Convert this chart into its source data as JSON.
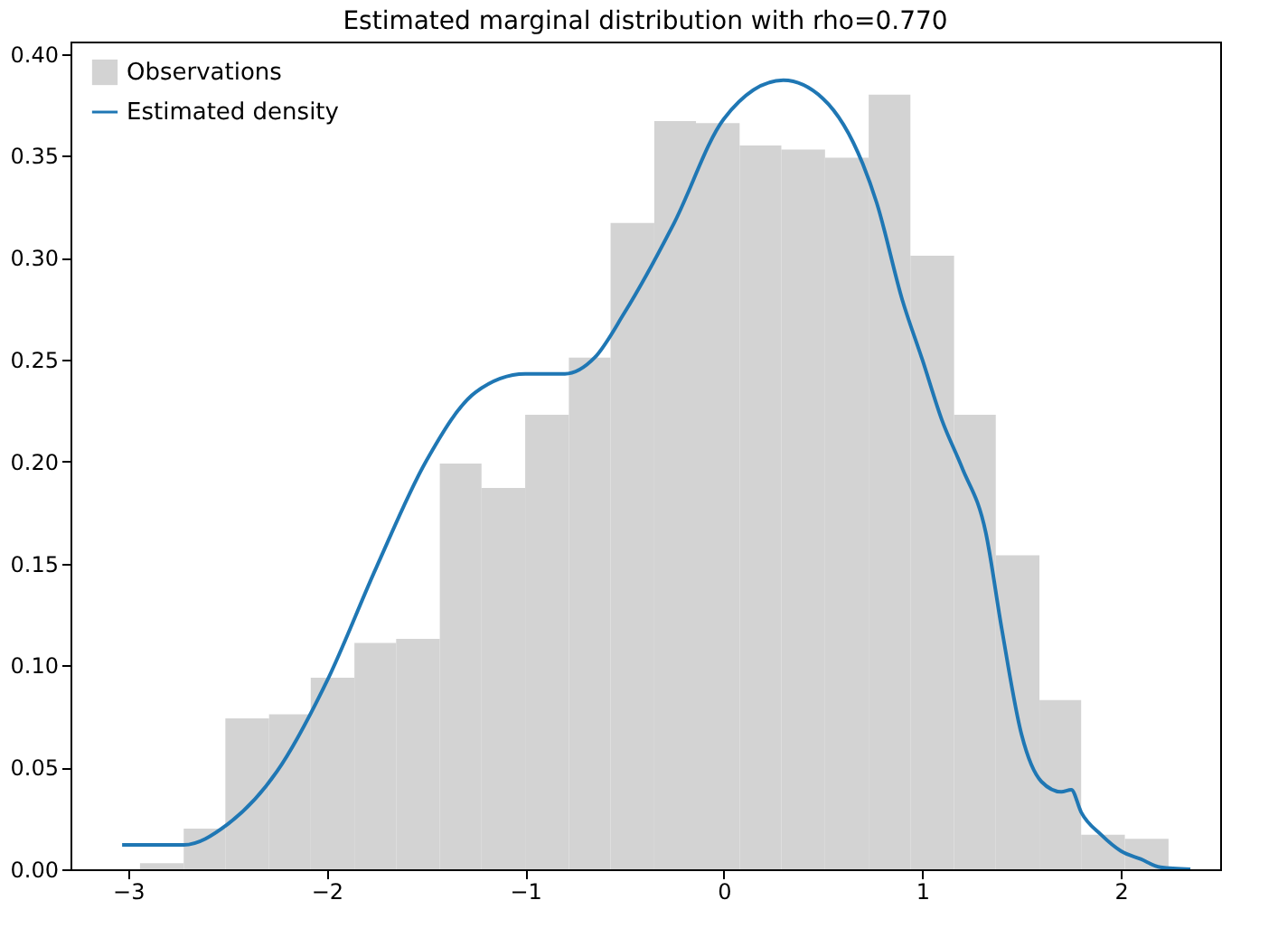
{
  "chart_data": {
    "type": "histogram",
    "title": "Estimated marginal distribution with rho=0.770",
    "bins": [
      -2.94,
      -2.72,
      -2.51,
      -2.29,
      -2.08,
      -1.86,
      -1.65,
      -1.43,
      -1.22,
      -1.0,
      -0.78,
      -0.57,
      -0.35,
      -0.14,
      0.08,
      0.29,
      0.51,
      0.73,
      0.94,
      1.16,
      1.37,
      1.59,
      1.8,
      2.02,
      2.24
    ],
    "series": [
      {
        "name": "Observations",
        "type": "histogram",
        "color": "#d3d3d3",
        "values": [
          0.003,
          0.02,
          0.074,
          0.076,
          0.094,
          0.111,
          0.113,
          0.199,
          0.187,
          0.223,
          0.251,
          0.317,
          0.367,
          0.366,
          0.355,
          0.353,
          0.349,
          0.38,
          0.301,
          0.223,
          0.154,
          0.083,
          0.017,
          0.015
        ]
      },
      {
        "name": "Estimated density",
        "type": "line",
        "color": "#1f77b4",
        "x": [
          -3.03,
          -2.72,
          -2.5,
          -2.25,
          -2.0,
          -1.75,
          -1.5,
          -1.25,
          -1.0,
          -0.8,
          -0.65,
          -0.5,
          -0.25,
          0.0,
          0.3,
          0.5,
          0.7,
          0.77,
          0.9,
          1.0,
          1.1,
          1.2,
          1.32,
          1.4,
          1.5,
          1.6,
          1.7,
          1.75,
          1.8,
          1.9,
          2.0,
          2.1,
          2.2,
          2.35
        ],
        "values": [
          0.012,
          0.012,
          0.022,
          0.048,
          0.092,
          0.148,
          0.2,
          0.234,
          0.243,
          0.243,
          0.251,
          0.273,
          0.317,
          0.368,
          0.387,
          0.378,
          0.346,
          0.327,
          0.279,
          0.25,
          0.22,
          0.197,
          0.165,
          0.118,
          0.066,
          0.043,
          0.038,
          0.039,
          0.028,
          0.017,
          0.009,
          0.005,
          0.001,
          0.0
        ]
      }
    ],
    "xlim": [
      -3.29,
      2.5
    ],
    "ylim": [
      0,
      0.406
    ],
    "xticks": [
      {
        "value": -3,
        "label": "−3"
      },
      {
        "value": -2,
        "label": "−2"
      },
      {
        "value": -1,
        "label": "−1"
      },
      0,
      1,
      2
    ],
    "yticks": [
      {
        "value": 0,
        "label": "0.00"
      },
      {
        "value": 0.05,
        "label": "0.05"
      },
      {
        "value": 0.1,
        "label": "0.10"
      },
      {
        "value": 0.15,
        "label": "0.15"
      },
      {
        "value": 0.2,
        "label": "0.20"
      },
      {
        "value": 0.25,
        "label": "0.25"
      },
      {
        "value": 0.3,
        "label": "0.30"
      },
      {
        "value": 0.35,
        "label": "0.35"
      },
      {
        "value": 0.4,
        "label": "0.40"
      }
    ],
    "grid": false,
    "legend": "top left"
  }
}
